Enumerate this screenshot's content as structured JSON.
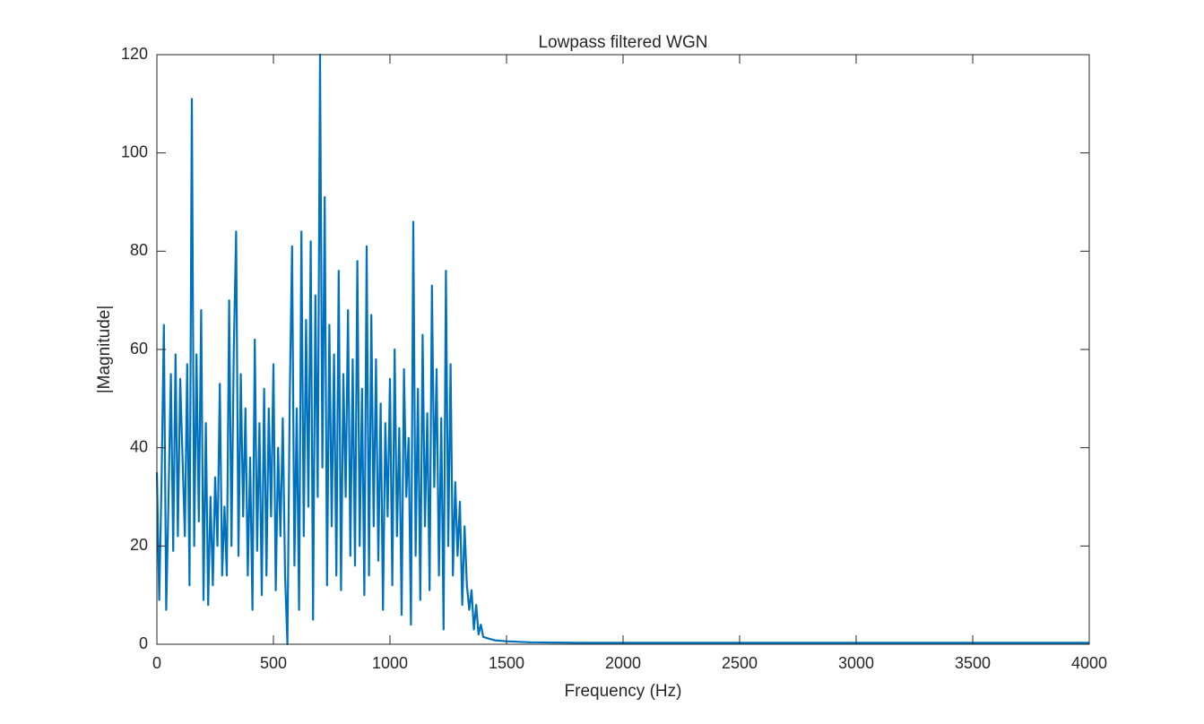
{
  "chart_data": {
    "type": "line",
    "title": "Lowpass filtered WGN",
    "x_label": "Frequency (Hz)",
    "y_label": "|Magnitude|",
    "x": [
      0,
      10,
      20,
      30,
      40,
      50,
      60,
      70,
      80,
      90,
      100,
      110,
      120,
      130,
      140,
      150,
      160,
      170,
      180,
      190,
      200,
      210,
      220,
      230,
      240,
      250,
      260,
      270,
      280,
      290,
      300,
      310,
      320,
      330,
      340,
      350,
      360,
      370,
      380,
      390,
      400,
      410,
      420,
      430,
      440,
      450,
      460,
      470,
      480,
      490,
      500,
      510,
      520,
      530,
      540,
      550,
      560,
      570,
      580,
      590,
      600,
      610,
      620,
      630,
      640,
      650,
      660,
      670,
      680,
      690,
      700,
      710,
      720,
      730,
      740,
      750,
      760,
      770,
      780,
      790,
      800,
      810,
      820,
      830,
      840,
      850,
      860,
      870,
      880,
      890,
      900,
      910,
      920,
      930,
      940,
      950,
      960,
      970,
      980,
      990,
      1000,
      1010,
      1020,
      1030,
      1040,
      1050,
      1060,
      1070,
      1080,
      1090,
      1100,
      1110,
      1120,
      1130,
      1140,
      1150,
      1160,
      1170,
      1180,
      1190,
      1200,
      1210,
      1220,
      1230,
      1240,
      1250,
      1260,
      1270,
      1280,
      1290,
      1300,
      1310,
      1320,
      1330,
      1340,
      1350,
      1360,
      1370,
      1380,
      1390,
      1400,
      1420,
      1450,
      1500,
      1600,
      1800,
      2000,
      2500,
      3000,
      3500,
      4000
    ],
    "series": [
      {
        "name": "|Magnitude|",
        "color": "#0072bd",
        "values": [
          35,
          9,
          33,
          65,
          7,
          30,
          55,
          19,
          59,
          22,
          54,
          38,
          22,
          57,
          12,
          111,
          20,
          59,
          25,
          68,
          9,
          45,
          8,
          30,
          12,
          34,
          20,
          53,
          14,
          28,
          14,
          70,
          20,
          60,
          84,
          18,
          55,
          26,
          48,
          14,
          38,
          7,
          62,
          19,
          45,
          10,
          52,
          14,
          48,
          26,
          57,
          11,
          40,
          22,
          46,
          14,
          0,
          50,
          81,
          16,
          48,
          7,
          84,
          22,
          66,
          28,
          82,
          5,
          71,
          30,
          120,
          36,
          91,
          12,
          65,
          24,
          59,
          14,
          76,
          11,
          55,
          30,
          68,
          18,
          58,
          16,
          78,
          20,
          52,
          10,
          81,
          14,
          67,
          24,
          58,
          17,
          49,
          7,
          45,
          26,
          54,
          12,
          60,
          22,
          44,
          6,
          56,
          30,
          42,
          4,
          86,
          18,
          52,
          9,
          63,
          24,
          47,
          11,
          73,
          32,
          56,
          14,
          46,
          3,
          76,
          20,
          57,
          14,
          33,
          18,
          29,
          8,
          24,
          12,
          7,
          11,
          3,
          8,
          2,
          4,
          1.5,
          1.2,
          0.8,
          0.6,
          0.4,
          0.3,
          0.3,
          0.3,
          0.3,
          0.3,
          0.3
        ]
      }
    ],
    "xlim": [
      0,
      4000
    ],
    "ylim": [
      0,
      120
    ],
    "xticks": [
      0,
      500,
      1000,
      1500,
      2000,
      2500,
      3000,
      3500,
      4000
    ],
    "yticks": [
      0,
      20,
      40,
      60,
      80,
      100,
      120
    ]
  }
}
